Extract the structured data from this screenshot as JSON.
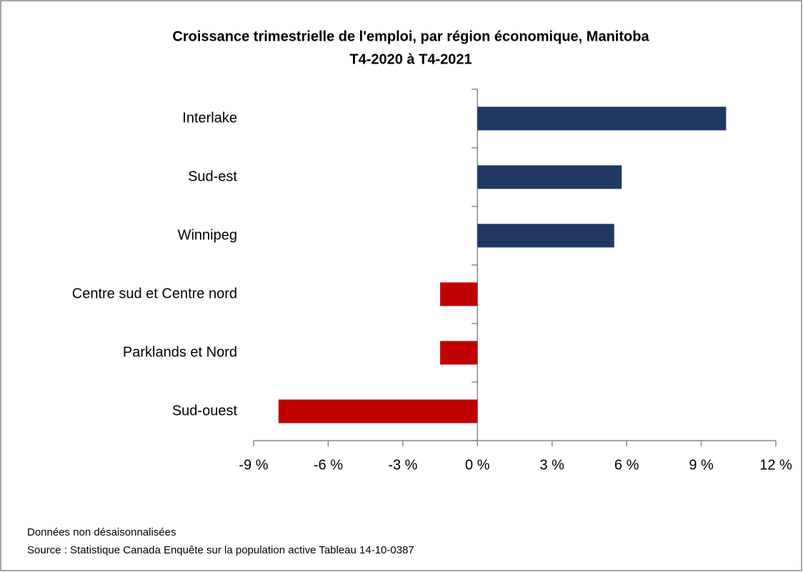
{
  "chart_data": {
    "type": "barh",
    "title": "Croissance trimestrielle de l'emploi, par région économique, Manitoba",
    "subtitle": "T4-2020 à T4-2021",
    "categories": [
      "Interlake",
      "Sud-est",
      "Winnipeg",
      "Centre sud et Centre nord",
      "Parklands et Nord",
      "Sud-ouest"
    ],
    "values": [
      10.0,
      5.8,
      5.5,
      -1.5,
      -1.5,
      -8.0
    ],
    "colors": [
      "#1f3864",
      "#1f3864",
      "#1f3864",
      "#c00000",
      "#c00000",
      "#c00000"
    ],
    "xlim": [
      -9,
      12
    ],
    "xticks": [
      {
        "value": -9,
        "label": "-9 %"
      },
      {
        "value": -6,
        "label": "-6 %"
      },
      {
        "value": -3,
        "label": "-3 %"
      },
      {
        "value": 0,
        "label": "0 %"
      },
      {
        "value": 3,
        "label": "3 %"
      },
      {
        "value": 6,
        "label": "6 %"
      },
      {
        "value": 9,
        "label": "9 %"
      },
      {
        "value": 12,
        "label": "12 %"
      }
    ],
    "grid": false,
    "notes": [
      "Données non désaisonnalisées",
      "Source : Statistique Canada Enquête sur la population active Tableau 14-10-0387"
    ]
  }
}
